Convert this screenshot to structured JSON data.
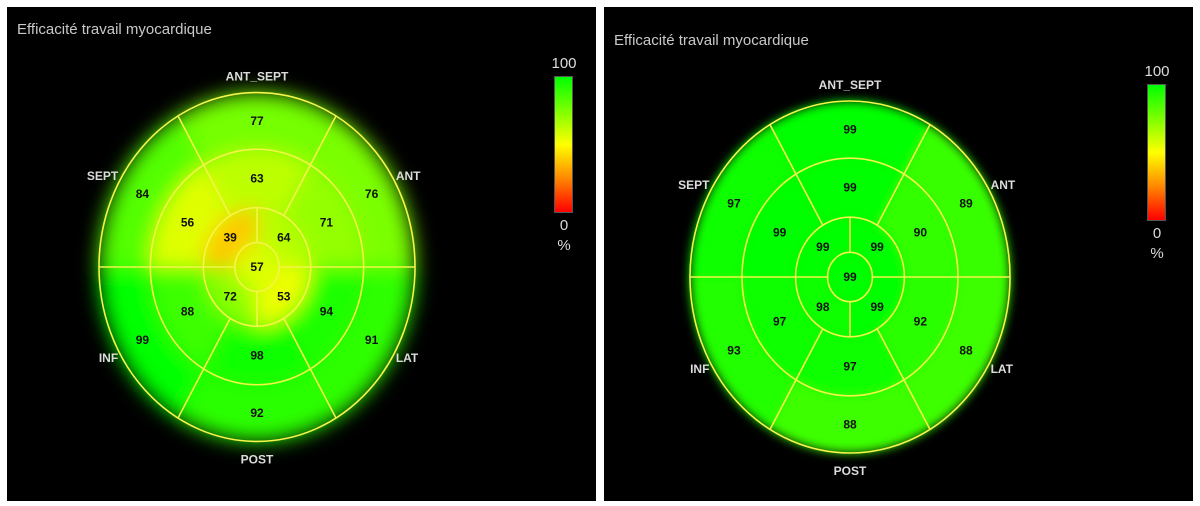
{
  "chart_data": [
    {
      "type": "polar_bullseye",
      "title": "Efficacité travail myocardique",
      "wall_labels": [
        "ANT_SEPT",
        "ANT",
        "LAT",
        "POST",
        "INF",
        "SEPT"
      ],
      "segments": {
        "basal": [
          {
            "wall": "ANT_SEPT",
            "value": 77
          },
          {
            "wall": "ANT",
            "value": 76
          },
          {
            "wall": "LAT",
            "value": 91
          },
          {
            "wall": "POST",
            "value": 92
          },
          {
            "wall": "INF",
            "value": 99
          },
          {
            "wall": "SEPT",
            "value": 84
          }
        ],
        "mid": [
          {
            "wall": "ANT_SEPT",
            "value": 63
          },
          {
            "wall": "ANT",
            "value": 71
          },
          {
            "wall": "LAT",
            "value": 94
          },
          {
            "wall": "POST",
            "value": 98
          },
          {
            "wall": "INF",
            "value": 88
          },
          {
            "wall": "SEPT",
            "value": 56
          }
        ],
        "apical": [
          {
            "wall": "ANT",
            "value": 64
          },
          {
            "wall": "LAT",
            "value": 53
          },
          {
            "wall": "INF",
            "value": 72
          },
          {
            "wall": "SEPT",
            "value": 39
          }
        ],
        "apex": 57
      },
      "colorbar": {
        "max": "100",
        "min": "0",
        "unit": "%",
        "colors": [
          "#00ff00",
          "#ffff00",
          "#ff0000"
        ]
      }
    },
    {
      "type": "polar_bullseye",
      "title": "Efficacité travail myocardique",
      "wall_labels": [
        "ANT_SEPT",
        "ANT",
        "LAT",
        "POST",
        "INF",
        "SEPT"
      ],
      "segments": {
        "basal": [
          {
            "wall": "ANT_SEPT",
            "value": 99
          },
          {
            "wall": "ANT",
            "value": 89
          },
          {
            "wall": "LAT",
            "value": 88
          },
          {
            "wall": "POST",
            "value": 88
          },
          {
            "wall": "INF",
            "value": 93
          },
          {
            "wall": "SEPT",
            "value": 97
          }
        ],
        "mid": [
          {
            "wall": "ANT_SEPT",
            "value": 99
          },
          {
            "wall": "ANT",
            "value": 90
          },
          {
            "wall": "LAT",
            "value": 92
          },
          {
            "wall": "POST",
            "value": 97
          },
          {
            "wall": "INF",
            "value": 97
          },
          {
            "wall": "SEPT",
            "value": 99
          }
        ],
        "apical": [
          {
            "wall": "ANT",
            "value": 99
          },
          {
            "wall": "LAT",
            "value": 99
          },
          {
            "wall": "INF",
            "value": 98
          },
          {
            "wall": "SEPT",
            "value": 99
          }
        ],
        "apex": 99
      },
      "colorbar": {
        "max": "100",
        "min": "0",
        "unit": "%",
        "colors": [
          "#00ff00",
          "#ffff00",
          "#ff0000"
        ]
      }
    }
  ]
}
